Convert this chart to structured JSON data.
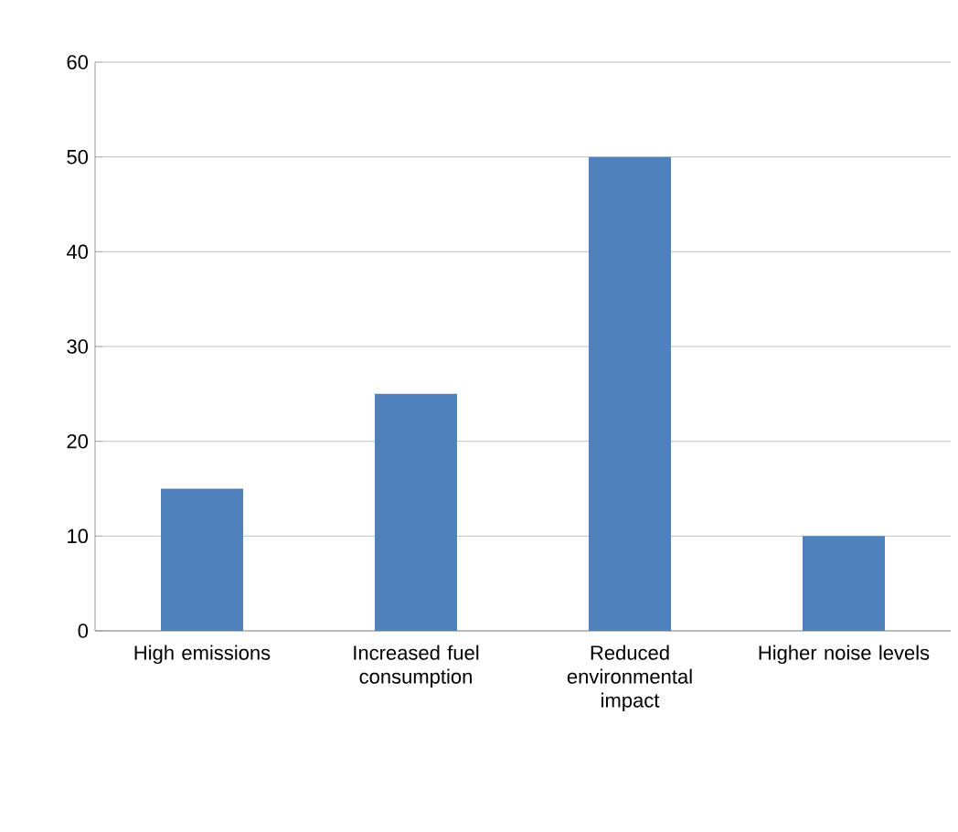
{
  "chart_data": {
    "type": "bar",
    "categories": [
      "High emissions",
      "Increased fuel consumption",
      "Reduced environmental impact",
      "Higher noise levels"
    ],
    "values": [
      15,
      25,
      50,
      10
    ],
    "color": "#4f81bd",
    "ylim": [
      0,
      60
    ],
    "yticks": [
      0,
      10,
      20,
      30,
      40,
      50,
      60
    ],
    "grid": "y"
  }
}
